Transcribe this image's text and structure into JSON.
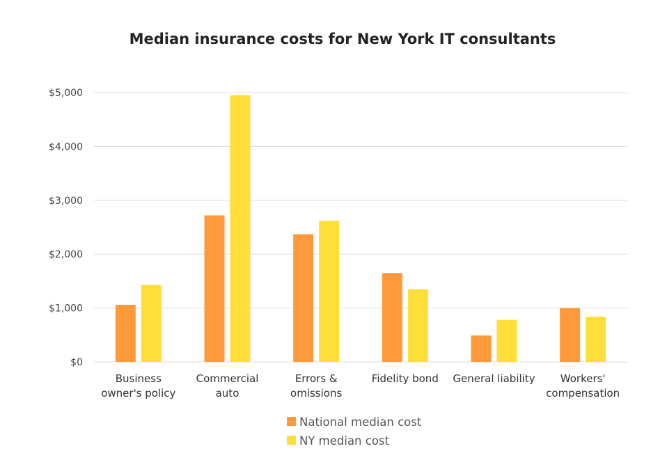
{
  "chart_data": {
    "type": "bar",
    "title": "Median insurance costs for New York IT consultants",
    "categories": [
      [
        "Business",
        "owner's policy"
      ],
      [
        "Commercial",
        "auto"
      ],
      [
        "Errors &",
        "omissions"
      ],
      [
        "Fidelity bond"
      ],
      [
        "General liability"
      ],
      [
        "Workers'",
        "compensation"
      ]
    ],
    "series": [
      {
        "name": "National median cost",
        "color": "#FF9A3C",
        "values": [
          1060,
          2720,
          2370,
          1650,
          490,
          1000
        ]
      },
      {
        "name": "NY median cost",
        "color": "#FFDE3A",
        "values": [
          1430,
          4950,
          2620,
          1350,
          780,
          840
        ]
      }
    ],
    "ylim": [
      0,
      5000
    ],
    "yticks": [
      0,
      1000,
      2000,
      3000,
      4000,
      5000
    ],
    "ytick_labels": [
      "$0",
      "$1,000",
      "$2,000",
      "$3,000",
      "$4,000",
      "$5,000"
    ],
    "xlabel": "",
    "ylabel": "",
    "grid": true,
    "legend_position": "bottom"
  }
}
